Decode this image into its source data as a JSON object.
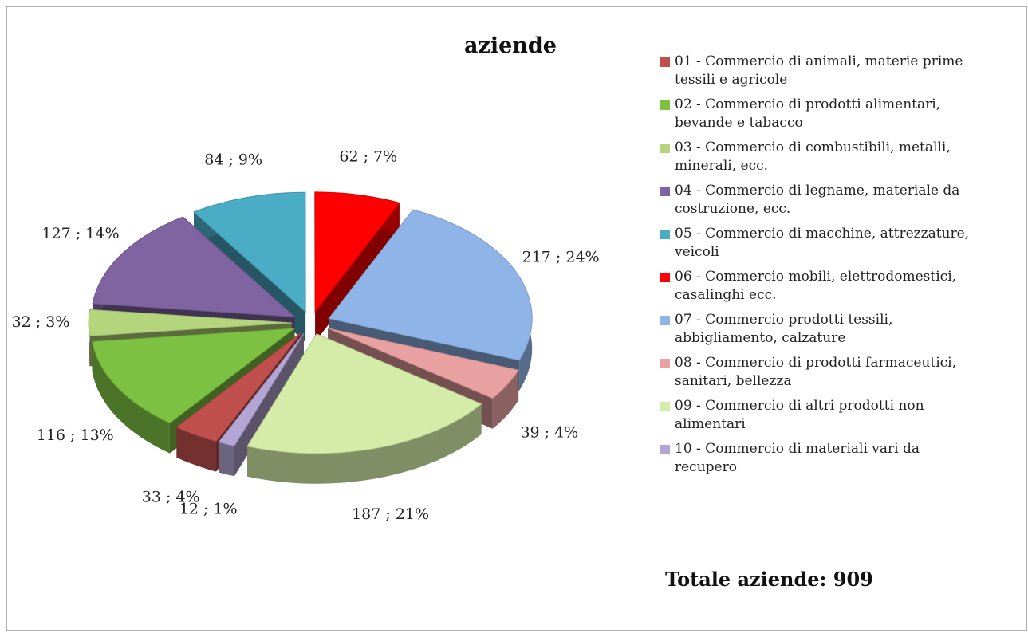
{
  "chart_data": {
    "type": "pie",
    "title": "aziende",
    "categories": [
      "01 - Commercio di animali, materie prime tessili e agricole",
      "02 - Commercio di prodotti alimentari, bevande e tabacco",
      "03 - Commercio di combustibili, metalli, minerali, ecc.",
      "04 - Commercio di legname, materiale da costruzione, ecc.",
      "05 - Commercio di macchine, attrezzature, veicoli",
      "06 - Commercio mobili, elettrodomestici, casalinghi ecc.",
      "07 - Commercio prodotti tessili, abbigliamento, calzature",
      "08 - Commercio di prodotti farmaceutici, sanitari, bellezza",
      "09 - Commercio di altri prodotti non alimentari",
      "10 - Commercio di materiali vari da recupero"
    ],
    "values": [
      33,
      116,
      32,
      127,
      84,
      62,
      217,
      39,
      187,
      12
    ],
    "value_labels": [
      "33 ; 4%",
      "116 ; 13%",
      "32 ; 3%",
      "127 ; 14%",
      "84 ; 9%",
      "62 ; 7%",
      "217 ; 24%",
      "39 ; 4%",
      "187 ; 21%",
      "12 ; 1%"
    ],
    "colors": [
      "#c0504d",
      "#7dc142",
      "#b5d57c",
      "#8064a2",
      "#4bacc6",
      "#ff0000",
      "#8fb4e8",
      "#e8a0a0",
      "#d4eca8",
      "#b3a6d4"
    ],
    "annotation": "Totale aziende: 909",
    "legend": "right"
  }
}
